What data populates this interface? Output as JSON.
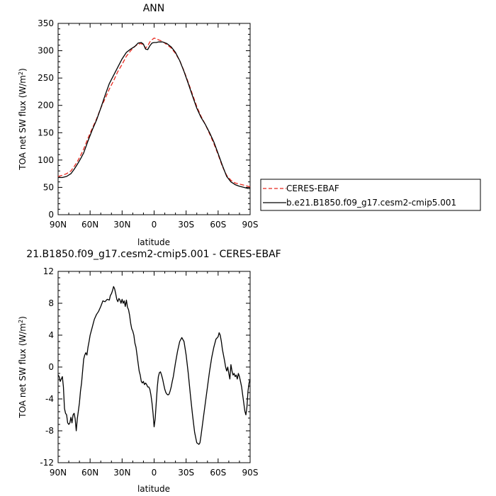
{
  "chart_data": [
    {
      "type": "line",
      "title": "ANN",
      "xlabel": "latitude",
      "ylabel_main": "TOA net SW flux (W/m",
      "ylabel_sup": "2",
      "ylabel_close": ")",
      "xlim": [
        90,
        -90
      ],
      "ylim": [
        0,
        350
      ],
      "x_ticks": [
        90,
        60,
        30,
        0,
        -30,
        -60,
        -90
      ],
      "x_tick_labels": [
        "90N",
        "60N",
        "30N",
        "0",
        "30S",
        "60S",
        "90S"
      ],
      "y_ticks": [
        0,
        50,
        100,
        150,
        200,
        250,
        300,
        350
      ],
      "y_tick_labels": [
        "0",
        "50",
        "100",
        "150",
        "200",
        "250",
        "300",
        "350"
      ],
      "legend_position": "right",
      "series": [
        {
          "name": "CERES-EBAF",
          "color": "#e8281e",
          "dashed": true,
          "x": [
            90,
            86,
            82,
            78,
            75,
            72,
            69,
            66,
            62,
            58,
            54,
            50,
            46,
            42,
            38,
            34,
            30,
            26,
            22,
            18,
            15,
            12,
            10,
            8,
            6,
            4,
            2,
            0,
            -2,
            -4,
            -8,
            -12,
            -16,
            -20,
            -24,
            -28,
            -32,
            -36,
            -40,
            -44,
            -48,
            -52,
            -56,
            -60,
            -64,
            -68,
            -72,
            -76,
            -80,
            -84,
            -88,
            -90
          ],
          "y": [
            70,
            72,
            75,
            80,
            88,
            97,
            108,
            120,
            140,
            158,
            175,
            195,
            212,
            230,
            245,
            262,
            275,
            290,
            300,
            308,
            312,
            313,
            310,
            305,
            309,
            316,
            320,
            323,
            322,
            320,
            317,
            311,
            305,
            295,
            282,
            263,
            242,
            220,
            198,
            180,
            165,
            148,
            130,
            110,
            88,
            72,
            63,
            58,
            56,
            54,
            52,
            51
          ]
        },
        {
          "name": "b.e21.B1850.f09_g17.cesm2-cmip5.001",
          "color": "#000000",
          "dashed": false,
          "x": [
            90,
            86,
            82,
            78,
            75,
            72,
            69,
            66,
            62,
            58,
            54,
            50,
            46,
            42,
            38,
            34,
            30,
            26,
            22,
            18,
            15,
            12,
            10,
            8,
            6,
            4,
            2,
            0,
            -2,
            -4,
            -8,
            -12,
            -16,
            -20,
            -24,
            -28,
            -32,
            -36,
            -40,
            -44,
            -48,
            -52,
            -56,
            -60,
            -64,
            -68,
            -72,
            -76,
            -80,
            -84,
            -88,
            -90
          ],
          "y": [
            68,
            68,
            70,
            75,
            83,
            92,
            102,
            113,
            135,
            155,
            173,
            195,
            218,
            240,
            255,
            270,
            285,
            297,
            303,
            308,
            314,
            315,
            312,
            303,
            302,
            309,
            314,
            315,
            315,
            316,
            316,
            313,
            307,
            297,
            282,
            262,
            240,
            217,
            195,
            178,
            165,
            150,
            133,
            112,
            90,
            70,
            60,
            55,
            52,
            50,
            48,
            48
          ]
        }
      ]
    },
    {
      "type": "line",
      "title": "21.B1850.f09_g17.cesm2-cmip5.001  -  CERES-EBAF",
      "xlabel": "latitude",
      "ylabel_main": "TOA net SW flux (W/m",
      "ylabel_sup": "2",
      "ylabel_close": ")",
      "xlim": [
        90,
        -90
      ],
      "ylim": [
        -12,
        12
      ],
      "x_ticks": [
        90,
        60,
        30,
        0,
        -30,
        -60,
        -90
      ],
      "x_tick_labels": [
        "90N",
        "60N",
        "30N",
        "0",
        "30S",
        "60S",
        "90S"
      ],
      "y_ticks": [
        -12,
        -8,
        -4,
        0,
        4,
        8,
        12
      ],
      "y_tick_labels": [
        "-12",
        "-8",
        "-4",
        "0",
        "4",
        "8",
        "12"
      ],
      "series": [
        {
          "name": "",
          "color": "#000000",
          "dashed": false,
          "x": [
            90,
            89,
            88,
            87,
            86,
            85,
            84,
            83,
            82,
            81,
            80,
            79,
            78,
            77,
            76,
            75,
            74,
            73,
            72,
            71,
            70,
            69,
            68,
            67,
            66,
            65,
            64,
            63,
            62,
            61,
            60,
            59,
            58,
            57,
            56,
            55,
            54,
            52,
            50,
            48,
            46,
            44,
            42,
            41,
            40,
            39,
            38,
            37,
            36,
            35,
            34,
            33,
            32,
            31,
            30,
            29,
            28,
            27,
            26,
            25,
            24,
            23,
            22,
            21,
            20,
            19,
            18,
            17,
            16,
            15,
            14,
            13,
            12,
            11,
            10,
            9,
            8,
            7,
            6,
            5,
            4,
            3,
            2,
            1,
            0,
            -1,
            -2,
            -3,
            -4,
            -5,
            -6,
            -7,
            -8,
            -9,
            -10,
            -11,
            -12,
            -13,
            -14,
            -15,
            -16,
            -17,
            -18,
            -20,
            -22,
            -24,
            -26,
            -28,
            -30,
            -32,
            -34,
            -36,
            -38,
            -40,
            -42,
            -43,
            -44,
            -46,
            -48,
            -50,
            -52,
            -54,
            -56,
            -58,
            -60,
            -61,
            -62,
            -63,
            -64,
            -65,
            -66,
            -67,
            -68,
            -69,
            -70,
            -71,
            -72,
            -73,
            -74,
            -75,
            -76,
            -77,
            -78,
            -79,
            -80,
            -81,
            -82,
            -83,
            -84,
            -85,
            -86,
            -87,
            -88,
            -89,
            -90
          ],
          "y": [
            -1.0,
            -1.2,
            -1.8,
            -1.5,
            -1.2,
            -2.5,
            -5.2,
            -5.8,
            -6.0,
            -7.0,
            -7.2,
            -7.0,
            -6.3,
            -7.0,
            -6.0,
            -5.8,
            -6.5,
            -8.0,
            -6.5,
            -5.5,
            -4.5,
            -3.0,
            -2.0,
            -0.5,
            1.0,
            1.5,
            1.8,
            1.5,
            2.5,
            3.2,
            4.0,
            4.5,
            5.0,
            5.5,
            6.0,
            6.3,
            6.6,
            7.0,
            7.6,
            8.3,
            8.2,
            8.5,
            8.4,
            9.0,
            9.2,
            9.6,
            10.1,
            9.8,
            9.2,
            8.5,
            8.2,
            8.6,
            8.4,
            8.0,
            8.5,
            8.0,
            8.3,
            7.6,
            8.4,
            7.5,
            7.2,
            6.5,
            5.5,
            4.8,
            4.5,
            4.0,
            3.0,
            2.5,
            1.5,
            0.5,
            -0.5,
            -1.0,
            -1.8,
            -2.0,
            -1.8,
            -2.2,
            -2.0,
            -2.2,
            -2.5,
            -2.5,
            -2.8,
            -3.5,
            -4.5,
            -5.8,
            -7.5,
            -6.5,
            -4.5,
            -2.5,
            -1.2,
            -0.7,
            -0.6,
            -1.0,
            -1.5,
            -2.2,
            -2.8,
            -3.2,
            -3.4,
            -3.5,
            -3.4,
            -3.0,
            -2.5,
            -1.8,
            -1.2,
            0.5,
            2.0,
            3.2,
            3.7,
            3.2,
            1.5,
            -0.8,
            -3.5,
            -6.0,
            -8.2,
            -9.5,
            -9.7,
            -9.5,
            -8.6,
            -6.5,
            -4.5,
            -2.5,
            -0.5,
            1.2,
            2.5,
            3.5,
            3.8,
            4.3,
            4.0,
            3.2,
            2.2,
            1.5,
            0.8,
            0.0,
            -0.5,
            0.0,
            -0.8,
            -1.5,
            0.3,
            -0.5,
            -1.0,
            -0.8,
            -1.2,
            -1.0,
            -1.5,
            -0.8,
            -1.2,
            -1.8,
            -2.5,
            -3.5,
            -4.5,
            -5.5,
            -6.0,
            -5.0,
            -3.0,
            -2.0,
            -1.5
          ]
        }
      ]
    }
  ]
}
